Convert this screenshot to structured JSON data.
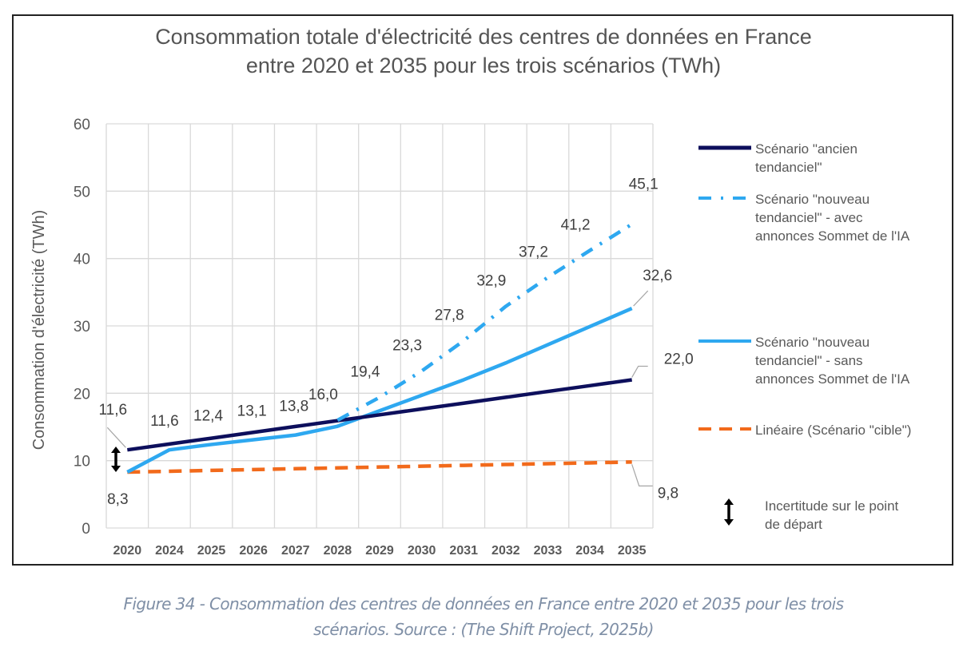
{
  "chart_data": {
    "type": "line",
    "title_lines": [
      "Consommation totale d'électricité des centres de données en France",
      "entre 2020 et 2035 pour les trois scénarios (TWh)"
    ],
    "xlabel": "",
    "ylabel": "Consommation d'électricité (TWh)",
    "ylim": [
      0,
      60
    ],
    "yticks": [
      0,
      10,
      20,
      30,
      40,
      50,
      60
    ],
    "grid": true,
    "legend_position": "right",
    "categories": [
      "2020",
      "2024",
      "2025",
      "2026",
      "2027",
      "2028",
      "2029",
      "2030",
      "2031",
      "2032",
      "2033",
      "2034",
      "2035"
    ],
    "series": [
      {
        "id": "ancien",
        "name": "Scénario \"ancien tendanciel\"",
        "legend_lines": [
          "Scénario \"ancien",
          "tendanciel\""
        ],
        "color": "#0d0f5c",
        "style": "solid",
        "values": [
          11.6,
          12.47,
          13.33,
          14.2,
          15.07,
          15.93,
          16.8,
          17.67,
          18.53,
          19.4,
          20.27,
          21.13,
          22.0
        ],
        "labels": {
          "0": "11,6",
          "12": "22,0"
        }
      },
      {
        "id": "avec",
        "name": "Scénario \"nouveau tendanciel\" - avec annonces Sommet de l'IA",
        "legend_lines": [
          "Scénario \"nouveau",
          "tendanciel\" - avec",
          "annonces Sommet de l'IA"
        ],
        "color": "#2ea8f0",
        "style": "dashdot",
        "values": [
          null,
          null,
          null,
          null,
          null,
          16.0,
          19.4,
          23.3,
          27.8,
          32.9,
          37.2,
          41.2,
          45.1
        ],
        "labels": {
          "5": "16,0",
          "6": "19,4",
          "7": "23,3",
          "8": "27,8",
          "9": "32,9",
          "10": "37,2",
          "11": "41,2",
          "12": "45,1"
        }
      },
      {
        "id": "sans",
        "name": "Scénario \"nouveau tendanciel\" - sans annonces Sommet de l'IA",
        "legend_lines": [
          "Scénario \"nouveau",
          "tendanciel\" - sans",
          "annonces Sommet de l'IA"
        ],
        "color": "#2ea8f0",
        "style": "solid",
        "values": [
          8.3,
          11.6,
          12.4,
          13.1,
          13.8,
          15.1,
          17.4,
          19.7,
          22.0,
          24.5,
          27.2,
          29.9,
          32.6
        ],
        "labels": {
          "0": "8,3",
          "1": "11,6",
          "2": "12,4",
          "3": "13,1",
          "4": "13,8",
          "12": "32,6"
        }
      },
      {
        "id": "cible",
        "name": "Linéaire (Scénario \"cible\")",
        "legend_lines": [
          "Linéaire (Scénario \"cible\")"
        ],
        "color": "#f26a1b",
        "style": "dashed",
        "values": [
          8.3,
          8.42,
          8.55,
          8.67,
          8.8,
          8.92,
          9.05,
          9.17,
          9.3,
          9.42,
          9.55,
          9.67,
          9.8
        ],
        "labels": {
          "12": "9,8"
        }
      }
    ],
    "uncertainty": {
      "legend_lines": [
        "Incertitude sur le point",
        "de départ"
      ],
      "category": "2020",
      "range": [
        8.3,
        11.6
      ]
    }
  },
  "caption": {
    "line1": "Figure 34 - Consommation des centres de données en France entre 2020 et 2035 pour les trois",
    "line2": "scénarios. Source : (The Shift Project, 2025b)"
  }
}
